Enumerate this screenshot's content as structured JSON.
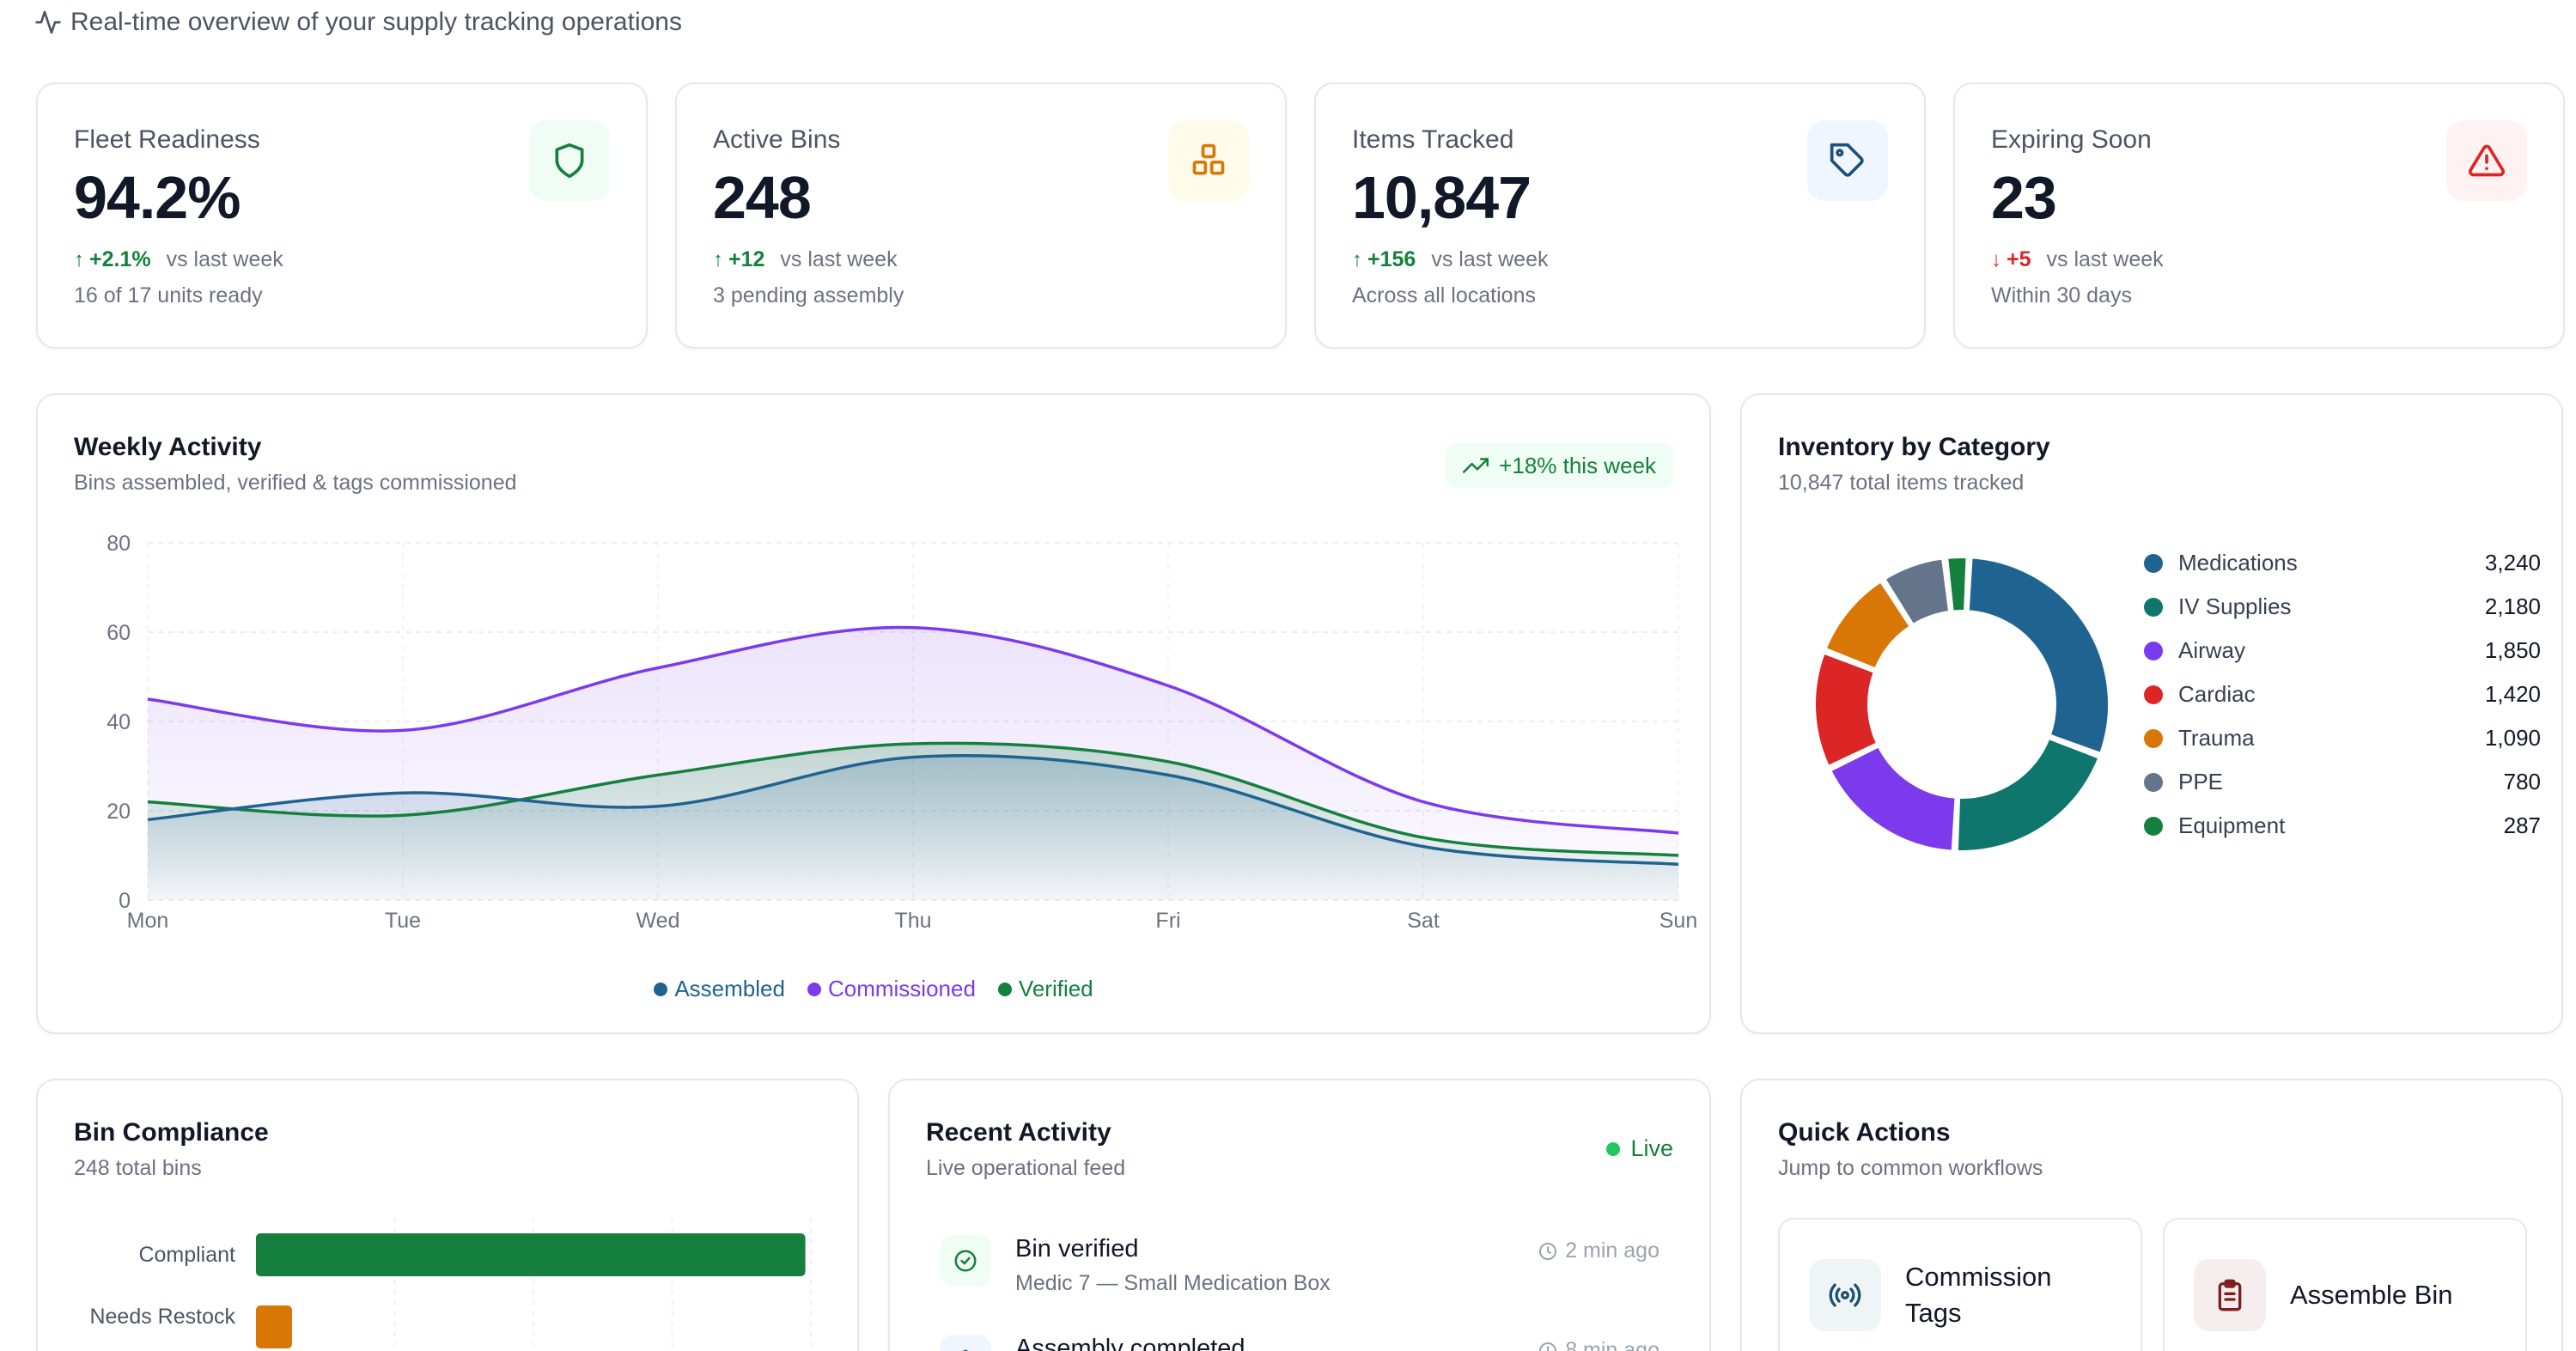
{
  "header": {
    "subtitle": "Real-time overview of your supply tracking operations",
    "icon": "activity-icon"
  },
  "stats": [
    {
      "label": "Fleet Readiness",
      "value": "94.2%",
      "delta": "+2.1%",
      "direction": "up",
      "comparison": "vs last week",
      "note": "16 of 17 units ready",
      "icon": "shield-icon",
      "icon_color": "#15803d",
      "icon_bg": "#f0fdf4"
    },
    {
      "label": "Active Bins",
      "value": "248",
      "delta": "+12",
      "direction": "up",
      "comparison": "vs last week",
      "note": "3 pending assembly",
      "icon": "boxes-icon",
      "icon_color": "#d97706",
      "icon_bg": "#fffbeb"
    },
    {
      "label": "Items Tracked",
      "value": "10,847",
      "delta": "+156",
      "direction": "up",
      "comparison": "vs last week",
      "note": "Across all locations",
      "icon": "tag-icon",
      "icon_color": "#1d4f7c",
      "icon_bg": "#eff6ff"
    },
    {
      "label": "Expiring Soon",
      "value": "23",
      "delta": "+5",
      "direction": "down",
      "comparison": "vs last week",
      "note": "Within 30 days",
      "icon": "alert-triangle-icon",
      "icon_color": "#dc2626",
      "icon_bg": "#fef2f2"
    }
  ],
  "weekly": {
    "title": "Weekly Activity",
    "subtitle": "Bins assembled, verified & tags commissioned",
    "badge": "+18% this week",
    "chart_data": {
      "type": "area",
      "categories": [
        "Mon",
        "Tue",
        "Wed",
        "Thu",
        "Fri",
        "Sat",
        "Sun"
      ],
      "ylim": [
        0,
        80
      ],
      "yticks": [
        "0",
        "20",
        "40",
        "60",
        "80"
      ],
      "grid": true,
      "legend_position": "bottom",
      "series": [
        {
          "name": "Assembled",
          "values": [
            18,
            24,
            21,
            32,
            28,
            12,
            8
          ],
          "color": "#1f6391"
        },
        {
          "name": "Commissioned",
          "values": [
            45,
            38,
            52,
            61,
            48,
            22,
            15
          ],
          "color": "#7c3aed"
        },
        {
          "name": "Verified",
          "values": [
            22,
            19,
            28,
            35,
            31,
            14,
            10
          ],
          "color": "#15803d"
        }
      ]
    }
  },
  "inventory": {
    "title": "Inventory by Category",
    "subtitle": "10,847 total items tracked",
    "chart_data": {
      "type": "pie",
      "labels": [
        "Medications",
        "IV Supplies",
        "Airway",
        "Cardiac",
        "Trauma",
        "PPE",
        "Equipment"
      ],
      "values": [
        3240,
        2180,
        1850,
        1420,
        1090,
        780,
        287
      ],
      "display_values": [
        "3,240",
        "2,180",
        "1,850",
        "1,420",
        "1,090",
        "780",
        "287"
      ],
      "colors": [
        "#1f6391",
        "#0f766e",
        "#7c3aed",
        "#dc2626",
        "#d97706",
        "#64748b",
        "#15803d"
      ]
    }
  },
  "compliance": {
    "title": "Bin Compliance",
    "subtitle": "248 total bins",
    "chart_data": {
      "type": "bar",
      "orientation": "horizontal",
      "categories": [
        "Compliant",
        "Needs Restock"
      ],
      "values": [
        198,
        13
      ],
      "xlim": [
        0,
        200
      ],
      "colors": [
        "#15803d",
        "#d97706"
      ]
    }
  },
  "activity": {
    "title": "Recent Activity",
    "subtitle": "Live operational feed",
    "live_label": "Live",
    "items": [
      {
        "title": "Bin verified",
        "detail": "Medic 7 — Small Medication Box",
        "time": "2 min ago",
        "icon": "check-circle-icon"
      },
      {
        "title": "Assembly completed",
        "detail": "",
        "time": "8 min ago",
        "icon": "package-icon"
      }
    ]
  },
  "quick_actions": {
    "title": "Quick Actions",
    "subtitle": "Jump to common workflows",
    "items": [
      {
        "label": "Commission Tags",
        "icon": "radio-icon",
        "icon_color": "#1f4f6e",
        "icon_bg": "#eff4f7"
      },
      {
        "label": "Assemble Bin",
        "icon": "clipboard-icon",
        "icon_color": "#7f1d1d",
        "icon_bg": "#f6eeee"
      }
    ]
  }
}
